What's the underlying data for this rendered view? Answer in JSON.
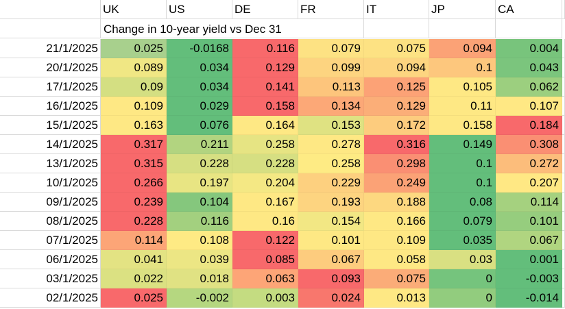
{
  "sheet": {
    "columns": [
      "UK",
      "US",
      "DE",
      "FR",
      "IT",
      "JP",
      "CA"
    ],
    "subtitle": "Change in 10-year yield vs Dec 31",
    "rows": [
      {
        "date": "21/1/2025",
        "values": [
          "0.025",
          "-0.0168",
          "0.116",
          "0.079",
          "0.075",
          "0.094",
          "0.004"
        ],
        "colors": [
          "#a8d08d",
          "#63be7b",
          "#f8696b",
          "#fde283",
          "#fde283",
          "#fba276",
          "#78c47c"
        ]
      },
      {
        "date": "20/1/2025",
        "values": [
          "0.089",
          "0.034",
          "0.129",
          "0.099",
          "0.094",
          "0.1",
          "0.043"
        ],
        "colors": [
          "#f0e784",
          "#63be7b",
          "#f8696b",
          "#fdd480",
          "#fdd580",
          "#fdc77d",
          "#7bc57d"
        ]
      },
      {
        "date": "17/1/2025",
        "values": [
          "0.09",
          "0.034",
          "0.141",
          "0.113",
          "0.125",
          "0.105",
          "0.062"
        ],
        "colors": [
          "#d4df82",
          "#63be7b",
          "#f8696b",
          "#fdc57c",
          "#fca276",
          "#fee884",
          "#9ccf7f"
        ]
      },
      {
        "date": "16/1/2025",
        "values": [
          "0.109",
          "0.029",
          "0.158",
          "0.134",
          "0.129",
          "0.11",
          "0.107"
        ],
        "colors": [
          "#fee884",
          "#63be7b",
          "#f8696b",
          "#fca877",
          "#fbae78",
          "#fee884",
          "#ffe884"
        ]
      },
      {
        "date": "15/1/2025",
        "values": [
          "0.163",
          "0.076",
          "0.164",
          "0.153",
          "0.172",
          "0.158",
          "0.184"
        ],
        "colors": [
          "#fee884",
          "#63be7b",
          "#fee884",
          "#dfe282",
          "#fdcc7e",
          "#fee884",
          "#f8696b"
        ]
      },
      {
        "date": "14/1/2025",
        "values": [
          "0.317",
          "0.211",
          "0.258",
          "0.278",
          "0.316",
          "0.149",
          "0.308"
        ],
        "colors": [
          "#f8696b",
          "#b2d480",
          "#e6e483",
          "#fee884",
          "#f8696b",
          "#63be7b",
          "#fa8f73"
        ]
      },
      {
        "date": "13/1/2025",
        "values": [
          "0.315",
          "0.228",
          "0.228",
          "0.258",
          "0.298",
          "0.1",
          "0.272"
        ],
        "colors": [
          "#f8696b",
          "#d6df82",
          "#d6df82",
          "#feeb84",
          "#fa8f73",
          "#63be7b",
          "#fcbd7b"
        ]
      },
      {
        "date": "10/1/2025",
        "values": [
          "0.266",
          "0.197",
          "0.204",
          "0.229",
          "0.249",
          "0.1",
          "0.207"
        ],
        "colors": [
          "#f8696b",
          "#e8e583",
          "#f4e884",
          "#fdd07f",
          "#fba276",
          "#63be7b",
          "#ffe884"
        ]
      },
      {
        "date": "09/1/2025",
        "values": [
          "0.239",
          "0.104",
          "0.167",
          "0.193",
          "0.188",
          "0.08",
          "0.114"
        ],
        "colors": [
          "#f8696b",
          "#85c77d",
          "#fee884",
          "#fdd480",
          "#fdd880",
          "#63be7b",
          "#a5d17f"
        ]
      },
      {
        "date": "08/1/2025",
        "values": [
          "0.228",
          "0.116",
          "0.16",
          "0.154",
          "0.166",
          "0.079",
          "0.101"
        ],
        "colors": [
          "#f8696b",
          "#a3d07f",
          "#fee884",
          "#f2e784",
          "#fee884",
          "#63be7b",
          "#96cd7e"
        ]
      },
      {
        "date": "07/1/2025",
        "values": [
          "0.114",
          "0.108",
          "0.122",
          "0.101",
          "0.109",
          "0.035",
          "0.067"
        ],
        "colors": [
          "#fca577",
          "#feea84",
          "#f8696b",
          "#fee884",
          "#fee884",
          "#63be7b",
          "#b0d580"
        ]
      },
      {
        "date": "06/1/2025",
        "values": [
          "0.041",
          "0.039",
          "0.085",
          "0.067",
          "0.058",
          "0.03",
          "0.001"
        ],
        "colors": [
          "#e3e383",
          "#ece684",
          "#f8696b",
          "#fdcc7e",
          "#fee884",
          "#d9e082",
          "#63be7b"
        ]
      },
      {
        "date": "03/1/2025",
        "values": [
          "0.022",
          "0.018",
          "0.063",
          "0.093",
          "0.075",
          "0",
          "-0.003"
        ],
        "colors": [
          "#dbe182",
          "#e0e283",
          "#fda577",
          "#f8696b",
          "#fbac78",
          "#75c47d",
          "#63be7b"
        ]
      },
      {
        "date": "02/1/2025",
        "values": [
          "0.025",
          "-0.002",
          "0.003",
          "0.024",
          "0.013",
          "0",
          "-0.014"
        ],
        "colors": [
          "#f8696b",
          "#b5d780",
          "#c4dc81",
          "#f8776d",
          "#fee884",
          "#92cc7e",
          "#63be7b"
        ]
      }
    ]
  }
}
